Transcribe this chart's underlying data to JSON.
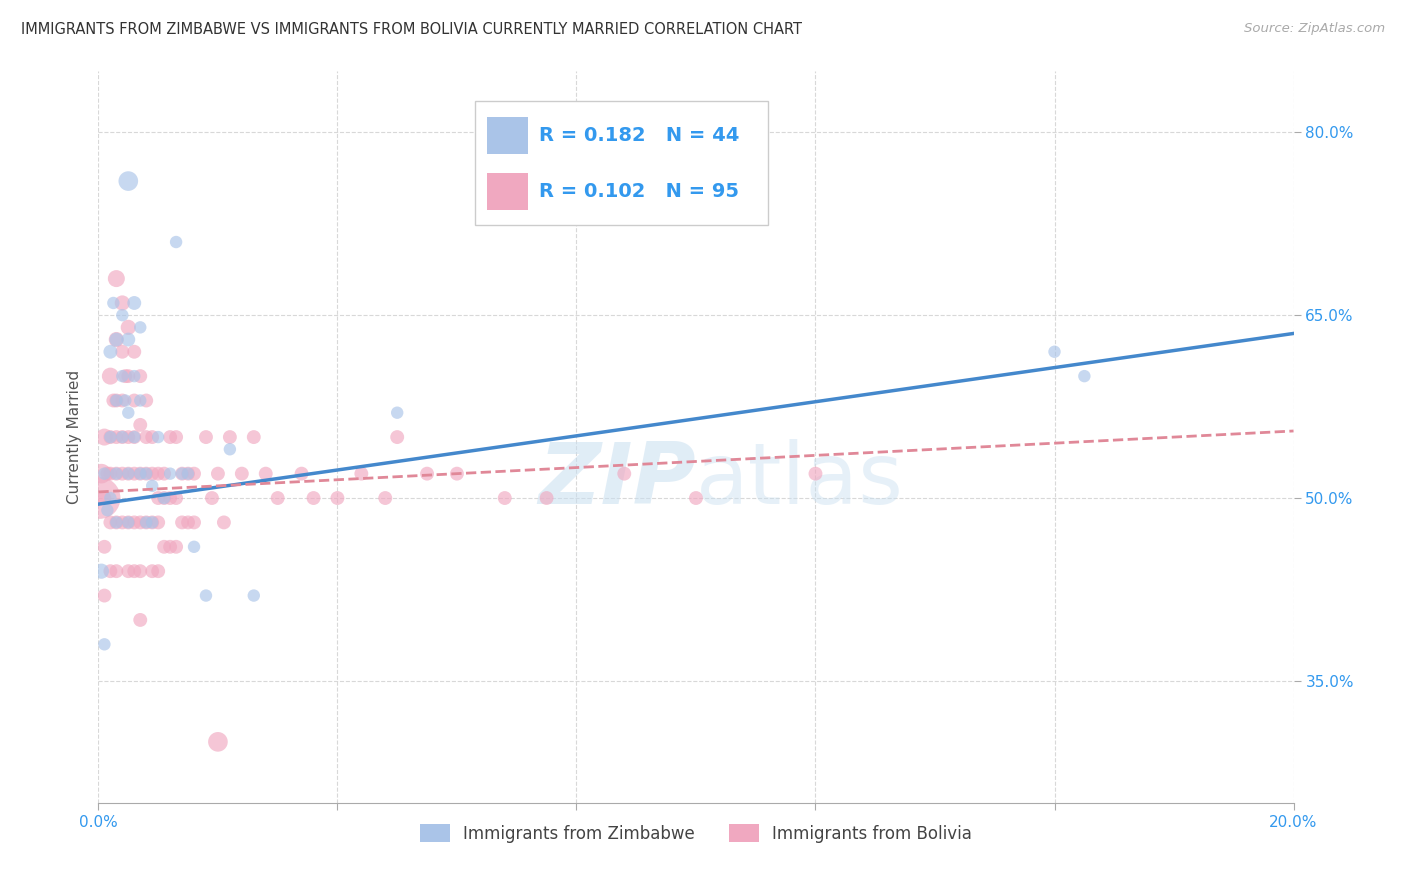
{
  "title": "IMMIGRANTS FROM ZIMBABWE VS IMMIGRANTS FROM BOLIVIA CURRENTLY MARRIED CORRELATION CHART",
  "source": "Source: ZipAtlas.com",
  "ylabel": "Currently Married",
  "x_min": 0.0,
  "x_max": 0.2,
  "y_min": 0.25,
  "y_max": 0.85,
  "x_ticks": [
    0.0,
    0.04,
    0.08,
    0.12,
    0.16,
    0.2
  ],
  "y_ticks": [
    0.35,
    0.5,
    0.65,
    0.8
  ],
  "y_tick_labels": [
    "35.0%",
    "50.0%",
    "65.0%",
    "80.0%"
  ],
  "background_color": "#ffffff",
  "grid_color": "#d8d8d8",
  "legend_R1": "0.182",
  "legend_N1": "44",
  "legend_R2": "0.102",
  "legend_N2": "95",
  "color_zimbabwe": "#aac4e8",
  "color_bolivia": "#f0a8c0",
  "line_color_zimbabwe": "#4488cc",
  "line_color_bolivia": "#e08898",
  "watermark": "ZIPatlas",
  "zim_line": [
    0.0,
    0.2,
    0.495,
    0.635
  ],
  "bol_line": [
    0.0,
    0.2,
    0.505,
    0.555
  ],
  "zimbabwe_x": [
    0.0005,
    0.001,
    0.001,
    0.0015,
    0.002,
    0.002,
    0.002,
    0.0025,
    0.003,
    0.003,
    0.003,
    0.003,
    0.004,
    0.004,
    0.004,
    0.0045,
    0.005,
    0.005,
    0.005,
    0.005,
    0.006,
    0.006,
    0.006,
    0.007,
    0.007,
    0.007,
    0.008,
    0.008,
    0.009,
    0.009,
    0.01,
    0.011,
    0.012,
    0.013,
    0.014,
    0.015,
    0.016,
    0.018,
    0.022,
    0.026,
    0.05,
    0.16,
    0.165,
    0.005
  ],
  "zimbabwe_y": [
    0.44,
    0.52,
    0.38,
    0.49,
    0.62,
    0.55,
    0.5,
    0.66,
    0.63,
    0.58,
    0.52,
    0.48,
    0.65,
    0.6,
    0.55,
    0.58,
    0.63,
    0.57,
    0.52,
    0.48,
    0.66,
    0.6,
    0.55,
    0.64,
    0.58,
    0.52,
    0.52,
    0.48,
    0.51,
    0.48,
    0.55,
    0.5,
    0.52,
    0.71,
    0.52,
    0.52,
    0.46,
    0.42,
    0.54,
    0.42,
    0.57,
    0.62,
    0.6,
    0.76
  ],
  "zimbabwe_sizes": [
    120,
    80,
    80,
    80,
    100,
    80,
    80,
    80,
    100,
    80,
    80,
    80,
    80,
    80,
    80,
    80,
    100,
    80,
    80,
    80,
    100,
    80,
    80,
    80,
    80,
    80,
    80,
    80,
    80,
    80,
    80,
    80,
    80,
    80,
    80,
    80,
    80,
    80,
    80,
    80,
    80,
    80,
    80,
    200
  ],
  "bolivia_x": [
    0.0002,
    0.0005,
    0.001,
    0.001,
    0.001,
    0.001,
    0.0015,
    0.002,
    0.002,
    0.002,
    0.002,
    0.002,
    0.0025,
    0.003,
    0.003,
    0.003,
    0.003,
    0.003,
    0.003,
    0.003,
    0.004,
    0.004,
    0.004,
    0.004,
    0.004,
    0.004,
    0.0045,
    0.005,
    0.005,
    0.005,
    0.005,
    0.005,
    0.005,
    0.006,
    0.006,
    0.006,
    0.006,
    0.006,
    0.006,
    0.007,
    0.007,
    0.007,
    0.007,
    0.007,
    0.007,
    0.008,
    0.008,
    0.008,
    0.008,
    0.009,
    0.009,
    0.009,
    0.009,
    0.01,
    0.01,
    0.01,
    0.01,
    0.011,
    0.011,
    0.011,
    0.012,
    0.012,
    0.012,
    0.013,
    0.013,
    0.013,
    0.014,
    0.014,
    0.015,
    0.015,
    0.016,
    0.016,
    0.018,
    0.019,
    0.02,
    0.021,
    0.022,
    0.024,
    0.026,
    0.028,
    0.03,
    0.034,
    0.036,
    0.04,
    0.044,
    0.048,
    0.05,
    0.055,
    0.06,
    0.068,
    0.075,
    0.088,
    0.1,
    0.12,
    0.02
  ],
  "bolivia_y": [
    0.5,
    0.52,
    0.55,
    0.5,
    0.46,
    0.42,
    0.52,
    0.6,
    0.55,
    0.52,
    0.48,
    0.44,
    0.58,
    0.68,
    0.63,
    0.58,
    0.55,
    0.52,
    0.48,
    0.44,
    0.66,
    0.62,
    0.58,
    0.55,
    0.52,
    0.48,
    0.6,
    0.64,
    0.6,
    0.55,
    0.52,
    0.48,
    0.44,
    0.62,
    0.58,
    0.55,
    0.52,
    0.48,
    0.44,
    0.6,
    0.56,
    0.52,
    0.48,
    0.44,
    0.4,
    0.58,
    0.55,
    0.52,
    0.48,
    0.55,
    0.52,
    0.48,
    0.44,
    0.52,
    0.5,
    0.48,
    0.44,
    0.52,
    0.5,
    0.46,
    0.55,
    0.5,
    0.46,
    0.55,
    0.5,
    0.46,
    0.52,
    0.48,
    0.52,
    0.48,
    0.52,
    0.48,
    0.55,
    0.5,
    0.52,
    0.48,
    0.55,
    0.52,
    0.55,
    0.52,
    0.5,
    0.52,
    0.5,
    0.5,
    0.52,
    0.5,
    0.55,
    0.52,
    0.52,
    0.5,
    0.5,
    0.52,
    0.5,
    0.52,
    0.3
  ],
  "bolivia_sizes": [
    900,
    200,
    150,
    100,
    100,
    100,
    100,
    150,
    100,
    100,
    100,
    100,
    100,
    150,
    120,
    100,
    100,
    100,
    100,
    100,
    120,
    100,
    100,
    100,
    100,
    100,
    100,
    120,
    100,
    100,
    100,
    100,
    100,
    100,
    100,
    100,
    100,
    100,
    100,
    100,
    100,
    100,
    100,
    100,
    100,
    100,
    100,
    100,
    100,
    100,
    100,
    100,
    100,
    100,
    100,
    100,
    100,
    100,
    100,
    100,
    100,
    100,
    100,
    100,
    100,
    100,
    100,
    100,
    100,
    100,
    100,
    100,
    100,
    100,
    100,
    100,
    100,
    100,
    100,
    100,
    100,
    100,
    100,
    100,
    100,
    100,
    100,
    100,
    100,
    100,
    100,
    100,
    100,
    100,
    200
  ]
}
